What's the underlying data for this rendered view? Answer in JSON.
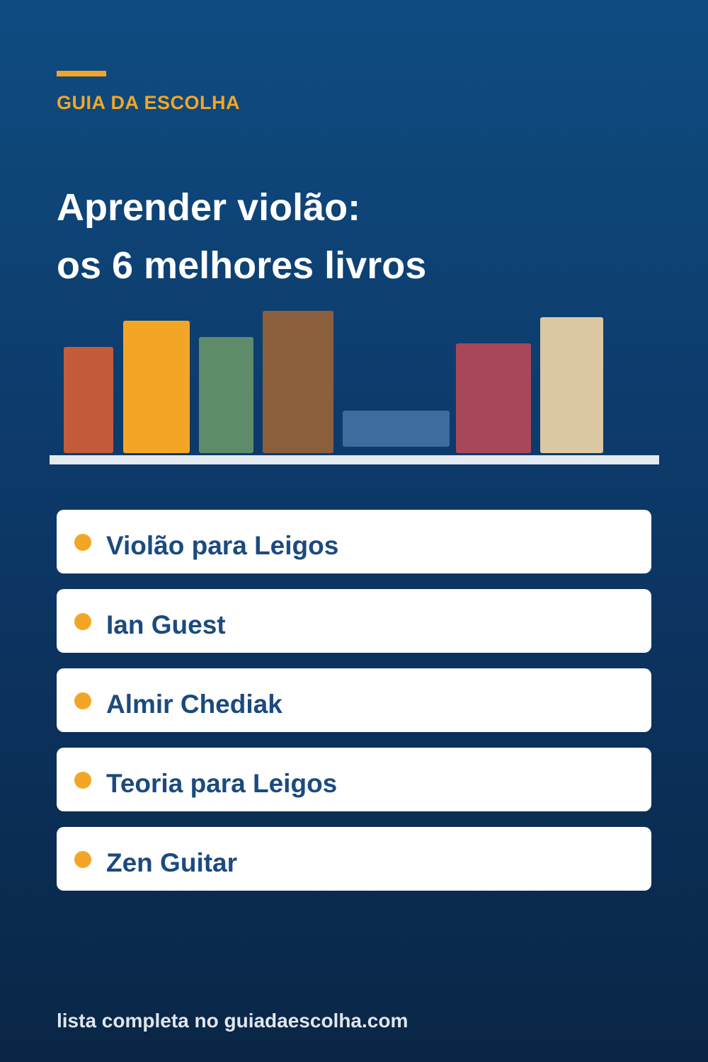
{
  "header": {
    "brand": "GUIA DA ESCOLHA",
    "title_lines": [
      "Aprender violão:",
      "os 6 melhores livros"
    ]
  },
  "list": {
    "items": [
      "Violão para Leigos",
      "Ian Guest",
      "Almir Chediak",
      "Teoria para Leigos",
      "Zen Guitar"
    ]
  },
  "footer": {
    "text": "lista completa no guiadaescolha.com"
  }
}
